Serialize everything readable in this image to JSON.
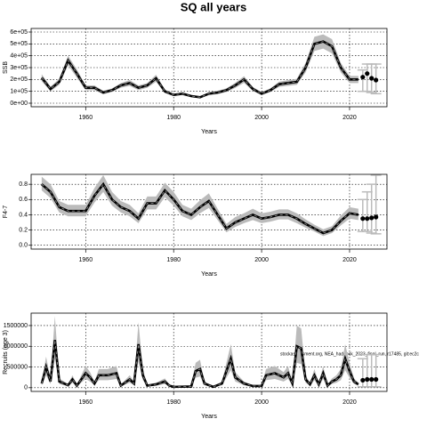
{
  "title": "SQ all years",
  "annotation": "stockassessment.org, NEA_haddock_2023_final_run, r17485, git:ec2c",
  "chart_data": [
    {
      "type": "line",
      "y_label": "SSB",
      "x_label": "Years",
      "grid": true,
      "color": "#000000",
      "band_color": "#bbbbbb",
      "xlim": [
        1947.6,
        2028.5
      ],
      "xticks": [
        1960,
        1980,
        2000,
        2020
      ],
      "ylim": [
        -30000,
        630000
      ],
      "yticks": [
        {
          "value": 0,
          "label": "0e+00"
        },
        {
          "value": 100000,
          "label": "1e+05"
        },
        {
          "value": 200000,
          "label": "2e+05"
        },
        {
          "value": 300000,
          "label": "3e+05"
        },
        {
          "value": 400000,
          "label": "4e+05"
        },
        {
          "value": 500000,
          "label": "5e+05"
        },
        {
          "value": 600000,
          "label": "6e+05"
        }
      ],
      "x": [
        1950,
        1952,
        1954,
        1956,
        1958,
        1960,
        1962,
        1964,
        1966,
        1968,
        1970,
        1972,
        1974,
        1976,
        1978,
        1980,
        1982,
        1984,
        1986,
        1988,
        1990,
        1992,
        1994,
        1996,
        1998,
        2000,
        2002,
        2004,
        2006,
        2008,
        2010,
        2012,
        2014,
        2016,
        2018,
        2020,
        2022
      ],
      "values": [
        215000,
        120000,
        180000,
        360000,
        250000,
        130000,
        130000,
        90000,
        110000,
        150000,
        170000,
        130000,
        150000,
        210000,
        100000,
        70000,
        80000,
        60000,
        50000,
        80000,
        90000,
        110000,
        150000,
        200000,
        120000,
        80000,
        110000,
        160000,
        170000,
        180000,
        300000,
        500000,
        520000,
        480000,
        300000,
        200000,
        200000
      ],
      "lower": [
        185000,
        100000,
        155000,
        320000,
        215000,
        110000,
        110000,
        75000,
        95000,
        130000,
        145000,
        110000,
        130000,
        180000,
        85000,
        60000,
        68000,
        50000,
        42000,
        68000,
        76000,
        94000,
        128000,
        172000,
        102000,
        68000,
        94000,
        138000,
        146000,
        155000,
        260000,
        440000,
        460000,
        420000,
        260000,
        170000,
        170000
      ],
      "upper": [
        245000,
        140000,
        205000,
        400000,
        285000,
        150000,
        150000,
        105000,
        125000,
        170000,
        195000,
        150000,
        170000,
        240000,
        115000,
        80000,
        92000,
        70000,
        58000,
        92000,
        104000,
        126000,
        172000,
        228000,
        138000,
        92000,
        126000,
        182000,
        194000,
        205000,
        340000,
        560000,
        580000,
        540000,
        340000,
        230000,
        230000
      ],
      "forecast": {
        "x": [
          2023,
          2024,
          2025,
          2026
        ],
        "values": [
          220000,
          250000,
          210000,
          195000
        ],
        "lower": [
          100000,
          100000,
          90000,
          80000
        ],
        "upper": [
          280000,
          330000,
          330000,
          330000
        ]
      }
    },
    {
      "type": "line",
      "y_label": "F4-7",
      "x_label": "Years",
      "grid": true,
      "color": "#000000",
      "band_color": "#bbbbbb",
      "xlim": [
        1947.6,
        2028.5
      ],
      "xticks": [
        1960,
        1980,
        2000,
        2020
      ],
      "ylim": [
        -0.05,
        0.93
      ],
      "yticks": [
        {
          "value": 0,
          "label": "0.0"
        },
        0.2,
        0.4,
        0.6,
        0.8
      ],
      "x": [
        1950,
        1952,
        1954,
        1956,
        1958,
        1960,
        1962,
        1964,
        1966,
        1968,
        1970,
        1972,
        1974,
        1976,
        1978,
        1980,
        1982,
        1984,
        1986,
        1988,
        1990,
        1992,
        1994,
        1996,
        1998,
        2000,
        2002,
        2004,
        2006,
        2008,
        2010,
        2012,
        2014,
        2016,
        2018,
        2020,
        2022
      ],
      "values": [
        0.8,
        0.7,
        0.5,
        0.45,
        0.45,
        0.45,
        0.65,
        0.8,
        0.6,
        0.5,
        0.45,
        0.35,
        0.55,
        0.55,
        0.72,
        0.6,
        0.45,
        0.4,
        0.5,
        0.58,
        0.4,
        0.22,
        0.3,
        0.35,
        0.4,
        0.35,
        0.37,
        0.4,
        0.4,
        0.35,
        0.28,
        0.22,
        0.16,
        0.2,
        0.32,
        0.42,
        0.4
      ],
      "lower": [
        0.72,
        0.62,
        0.43,
        0.38,
        0.38,
        0.38,
        0.56,
        0.7,
        0.52,
        0.43,
        0.38,
        0.29,
        0.47,
        0.47,
        0.63,
        0.52,
        0.38,
        0.33,
        0.42,
        0.49,
        0.33,
        0.17,
        0.24,
        0.29,
        0.33,
        0.29,
        0.31,
        0.34,
        0.34,
        0.29,
        0.23,
        0.18,
        0.12,
        0.16,
        0.26,
        0.35,
        0.33
      ],
      "upper": [
        0.9,
        0.8,
        0.58,
        0.53,
        0.53,
        0.53,
        0.75,
        0.92,
        0.7,
        0.58,
        0.53,
        0.42,
        0.64,
        0.64,
        0.82,
        0.7,
        0.53,
        0.48,
        0.59,
        0.68,
        0.48,
        0.28,
        0.37,
        0.42,
        0.48,
        0.42,
        0.44,
        0.47,
        0.47,
        0.42,
        0.34,
        0.27,
        0.21,
        0.25,
        0.39,
        0.5,
        0.48
      ],
      "forecast": {
        "x": [
          2023,
          2024,
          2025,
          2026
        ],
        "values": [
          0.35,
          0.35,
          0.36,
          0.37
        ],
        "lower": [
          0.18,
          0.18,
          0.16,
          0.15
        ],
        "upper": [
          0.6,
          0.7,
          0.8,
          0.92
        ]
      }
    },
    {
      "type": "line",
      "y_label": "Recruits (age 3)",
      "x_label": "Years",
      "grid": true,
      "color": "#000000",
      "band_color": "#bbbbbb",
      "xlim": [
        1947.6,
        2028.5
      ],
      "xticks": [
        1960,
        1980,
        2000,
        2020
      ],
      "ylim": [
        -90000,
        1800000
      ],
      "yticks": [
        0,
        500000,
        1000000,
        1500000
      ],
      "x": [
        1950,
        1951,
        1952,
        1953,
        1954,
        1956,
        1957,
        1958,
        1960,
        1961,
        1962,
        1963,
        1965,
        1967,
        1968,
        1970,
        1971,
        1972,
        1973,
        1974,
        1976,
        1978,
        1979,
        1980,
        1984,
        1985,
        1986,
        1987,
        1989,
        1991,
        1993,
        1994,
        1996,
        1998,
        2000,
        2001,
        2003,
        2005,
        2006,
        2007,
        2008,
        2009,
        2010,
        2011,
        2012,
        2013,
        2014,
        2015,
        2016,
        2017,
        2018,
        2019,
        2020,
        2021,
        2022
      ],
      "values": [
        100000,
        500000,
        150000,
        1150000,
        150000,
        60000,
        200000,
        50000,
        350000,
        250000,
        100000,
        300000,
        300000,
        350000,
        50000,
        200000,
        100000,
        1050000,
        300000,
        50000,
        80000,
        150000,
        50000,
        20000,
        30000,
        400000,
        450000,
        100000,
        20000,
        100000,
        700000,
        250000,
        100000,
        40000,
        40000,
        300000,
        350000,
        250000,
        350000,
        100000,
        1000000,
        950000,
        200000,
        80000,
        300000,
        80000,
        350000,
        50000,
        150000,
        200000,
        300000,
        700000,
        400000,
        150000,
        80000
      ],
      "lower": [
        60000,
        300000,
        90000,
        690000,
        90000,
        36000,
        120000,
        30000,
        210000,
        150000,
        60000,
        180000,
        180000,
        210000,
        30000,
        120000,
        60000,
        630000,
        180000,
        30000,
        48000,
        90000,
        30000,
        12000,
        18000,
        240000,
        270000,
        60000,
        12000,
        60000,
        420000,
        150000,
        60000,
        24000,
        24000,
        180000,
        210000,
        150000,
        210000,
        60000,
        600000,
        570000,
        120000,
        48000,
        180000,
        48000,
        210000,
        30000,
        90000,
        120000,
        180000,
        420000,
        240000,
        90000,
        48000
      ],
      "upper": [
        150000,
        750000,
        225000,
        1730000,
        225000,
        90000,
        300000,
        75000,
        525000,
        375000,
        150000,
        450000,
        450000,
        525000,
        75000,
        300000,
        150000,
        1580000,
        450000,
        75000,
        120000,
        225000,
        75000,
        30000,
        45000,
        600000,
        675000,
        150000,
        30000,
        150000,
        1050000,
        375000,
        150000,
        60000,
        60000,
        450000,
        525000,
        375000,
        525000,
        150000,
        1500000,
        1430000,
        300000,
        120000,
        450000,
        120000,
        525000,
        75000,
        225000,
        300000,
        450000,
        1050000,
        600000,
        225000,
        120000
      ],
      "forecast": {
        "x": [
          2023,
          2024,
          2025,
          2026
        ],
        "values": [
          180000,
          200000,
          200000,
          200000
        ],
        "lower": [
          20000,
          20000,
          20000,
          20000
        ],
        "upper": [
          700000,
          800000,
          800000,
          800000
        ]
      }
    }
  ]
}
